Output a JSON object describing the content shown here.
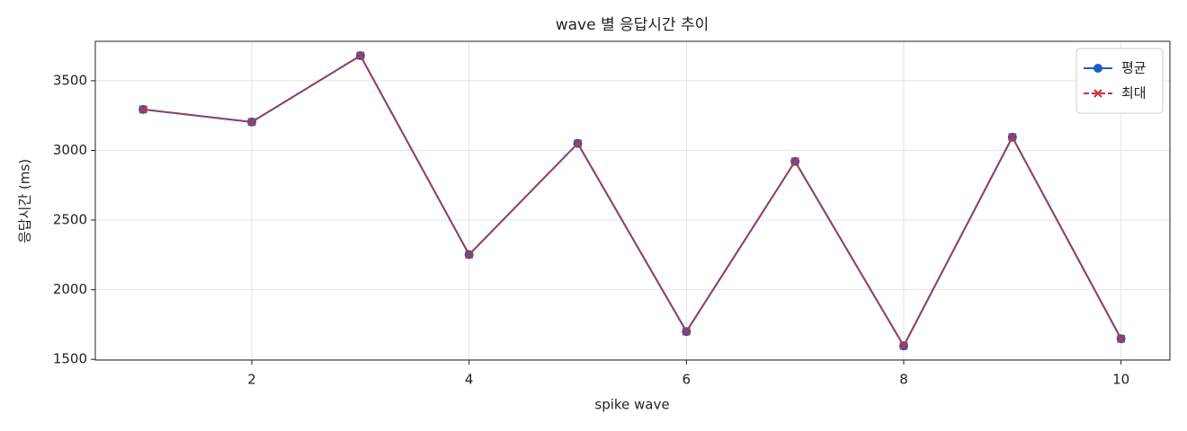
{
  "chart_data": {
    "type": "line",
    "title": "wave 별 응답시간 추이",
    "xlabel": "spike wave",
    "ylabel": "응답시간 (ms)",
    "x": [
      1,
      2,
      3,
      4,
      5,
      6,
      7,
      8,
      9,
      10
    ],
    "series": [
      {
        "name": "평균",
        "color": "#1f5fbf",
        "marker": "o",
        "linestyle": "solid",
        "values": [
          3294,
          3204,
          3680,
          2252,
          3050,
          1700,
          2921,
          1597,
          3095,
          1648
        ]
      },
      {
        "name": "최대",
        "color": "#c8323a",
        "marker": "x",
        "linestyle": "dashed",
        "values": [
          3294,
          3204,
          3680,
          2252,
          3050,
          1700,
          2921,
          1597,
          3095,
          1648
        ]
      }
    ],
    "xlim": [
      0.56,
      10.45
    ],
    "ylim": [
      1495,
      3783
    ],
    "xticks": [
      2,
      4,
      6,
      8,
      10
    ],
    "yticks": [
      1500,
      2000,
      2500,
      3000,
      3500
    ],
    "grid": true,
    "legend": "upper right"
  }
}
